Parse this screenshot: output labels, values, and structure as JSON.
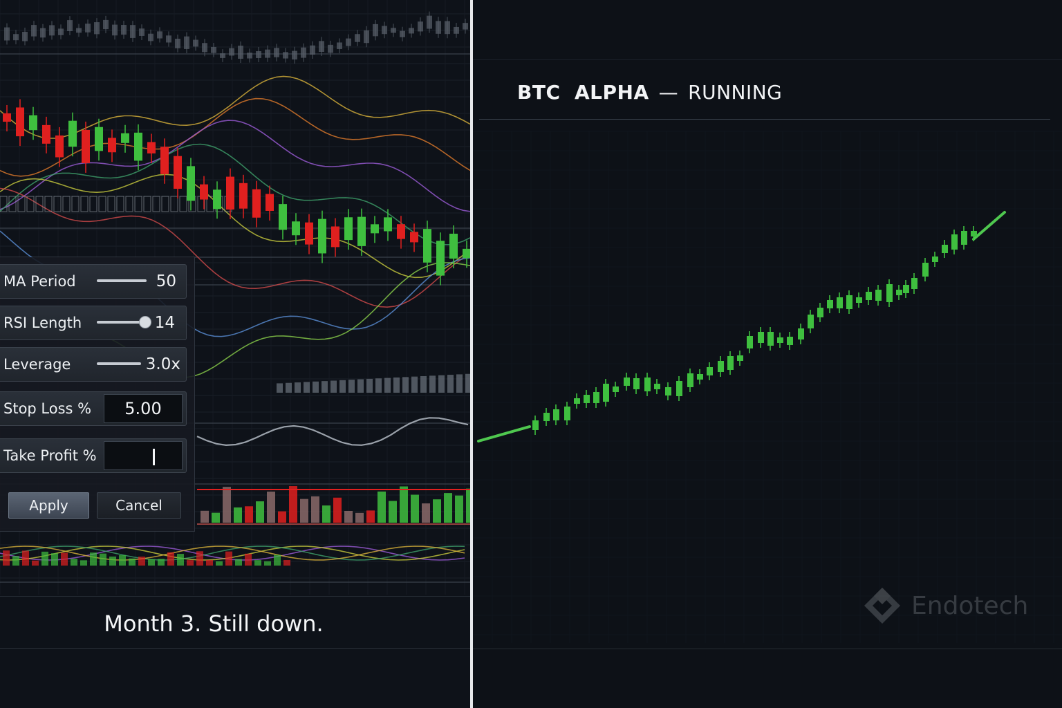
{
  "left_panel": {
    "settings": [
      {
        "label": "MA Period",
        "type": "slider",
        "value": "50",
        "level": 1.0
      },
      {
        "label": "RSI Length",
        "type": "slider",
        "value": "14",
        "level": 0.98
      },
      {
        "label": "Leverage",
        "type": "slider",
        "value": "3.0x",
        "level": 1.0
      },
      {
        "label": "Stop Loss %",
        "type": "input",
        "value": "5.00"
      },
      {
        "label": "Take Profit %",
        "type": "input",
        "value": ""
      }
    ],
    "apply_label": "Apply",
    "cancel_label": "Cancel",
    "caption": "Month 3. Still down."
  },
  "right_panel": {
    "bot_name": "BTC  ALPHA",
    "separator": "—",
    "status": "RUNNING",
    "watermark": "Endotech"
  },
  "colors": {
    "up": "#3fbf3f",
    "down": "#e0201f",
    "accent_line": "#4fc84f"
  },
  "icons": {
    "watermark_logo": "endotech-logo-icon"
  }
}
